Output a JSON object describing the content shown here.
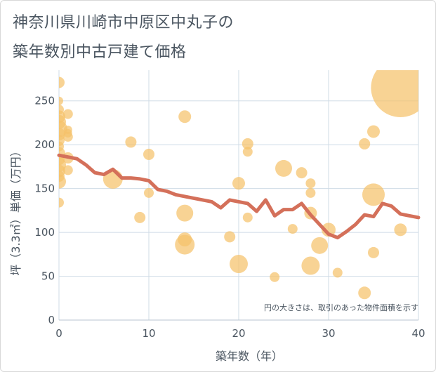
{
  "title_line1": "神奈川県川崎市中原区中丸子の",
  "title_line2": "築年数別中古戸建て価格",
  "chart_data": {
    "type": "scatter",
    "xlabel": "築年数（年）",
    "ylabel": "坪（3.3㎡）単価（万円）",
    "annotation": "円の大きさは、取引のあった物件面積を示す",
    "xlim": [
      0,
      40
    ],
    "ylim": [
      0,
      285
    ],
    "xticks": [
      0,
      10,
      20,
      30,
      40
    ],
    "yticks": [
      0,
      50,
      100,
      150,
      200,
      250
    ],
    "grid": true,
    "colors": {
      "bubble": "#f5c26b",
      "line": "#d4705a",
      "grid": "#cfdbe6",
      "text": "#4a5560"
    },
    "bubbles": [
      {
        "x": 0,
        "y": 271,
        "s": 8
      },
      {
        "x": 0,
        "y": 250,
        "s": 6
      },
      {
        "x": 0,
        "y": 240,
        "s": 7
      },
      {
        "x": 0,
        "y": 232,
        "s": 9
      },
      {
        "x": 0,
        "y": 226,
        "s": 10
      },
      {
        "x": 0,
        "y": 218,
        "s": 12
      },
      {
        "x": 0,
        "y": 212,
        "s": 9
      },
      {
        "x": 0,
        "y": 205,
        "s": 8
      },
      {
        "x": 0,
        "y": 198,
        "s": 7
      },
      {
        "x": 0,
        "y": 190,
        "s": 9
      },
      {
        "x": 0,
        "y": 183,
        "s": 8
      },
      {
        "x": 0,
        "y": 177,
        "s": 10
      },
      {
        "x": 0,
        "y": 170,
        "s": 9
      },
      {
        "x": 0,
        "y": 164,
        "s": 8
      },
      {
        "x": 0,
        "y": 158,
        "s": 10
      },
      {
        "x": 0,
        "y": 134,
        "s": 7
      },
      {
        "x": 1,
        "y": 235,
        "s": 7
      },
      {
        "x": 1,
        "y": 217,
        "s": 6
      },
      {
        "x": 1,
        "y": 213,
        "s": 6
      },
      {
        "x": 1,
        "y": 209,
        "s": 7
      },
      {
        "x": 1,
        "y": 185,
        "s": 8
      },
      {
        "x": 1,
        "y": 171,
        "s": 7
      },
      {
        "x": 6,
        "y": 161,
        "s": 14
      },
      {
        "x": 8,
        "y": 203,
        "s": 8
      },
      {
        "x": 9,
        "y": 117,
        "s": 8
      },
      {
        "x": 10,
        "y": 189,
        "s": 8
      },
      {
        "x": 10,
        "y": 145,
        "s": 7
      },
      {
        "x": 14,
        "y": 232,
        "s": 9
      },
      {
        "x": 14,
        "y": 122,
        "s": 12
      },
      {
        "x": 14,
        "y": 92,
        "s": 10
      },
      {
        "x": 14,
        "y": 86,
        "s": 14
      },
      {
        "x": 19,
        "y": 95,
        "s": 8
      },
      {
        "x": 20,
        "y": 156,
        "s": 9
      },
      {
        "x": 20,
        "y": 64,
        "s": 13
      },
      {
        "x": 21,
        "y": 201,
        "s": 8
      },
      {
        "x": 21,
        "y": 192,
        "s": 7
      },
      {
        "x": 21,
        "y": 117,
        "s": 7
      },
      {
        "x": 24,
        "y": 49,
        "s": 7
      },
      {
        "x": 25,
        "y": 173,
        "s": 12
      },
      {
        "x": 26,
        "y": 104,
        "s": 7
      },
      {
        "x": 27,
        "y": 168,
        "s": 8
      },
      {
        "x": 28,
        "y": 156,
        "s": 7
      },
      {
        "x": 28,
        "y": 145,
        "s": 7
      },
      {
        "x": 28,
        "y": 122,
        "s": 9
      },
      {
        "x": 28,
        "y": 62,
        "s": 13
      },
      {
        "x": 29,
        "y": 85,
        "s": 12
      },
      {
        "x": 30,
        "y": 103,
        "s": 10
      },
      {
        "x": 31,
        "y": 54,
        "s": 7
      },
      {
        "x": 34,
        "y": 201,
        "s": 8
      },
      {
        "x": 34,
        "y": 31,
        "s": 9
      },
      {
        "x": 35,
        "y": 215,
        "s": 9
      },
      {
        "x": 35,
        "y": 143,
        "s": 16
      },
      {
        "x": 35,
        "y": 77,
        "s": 8
      },
      {
        "x": 38,
        "y": 265,
        "s": 42
      },
      {
        "x": 38,
        "y": 103,
        "s": 9
      }
    ],
    "line": {
      "x": [
        0,
        1,
        2,
        3,
        4,
        5,
        6,
        7,
        8,
        9,
        10,
        11,
        12,
        13,
        14,
        15,
        16,
        17,
        18,
        19,
        20,
        21,
        22,
        23,
        24,
        25,
        26,
        27,
        28,
        29,
        30,
        31,
        32,
        33,
        34,
        35,
        36,
        37,
        38,
        39,
        40
      ],
      "y": [
        188,
        186,
        184,
        177,
        168,
        166,
        172,
        162,
        162,
        161,
        159,
        149,
        147,
        143,
        141,
        139,
        137,
        135,
        128,
        137,
        135,
        133,
        124,
        137,
        119,
        126,
        126,
        133,
        120,
        109,
        98,
        94,
        101,
        109,
        120,
        118,
        133,
        130,
        121,
        119,
        117
      ]
    }
  }
}
